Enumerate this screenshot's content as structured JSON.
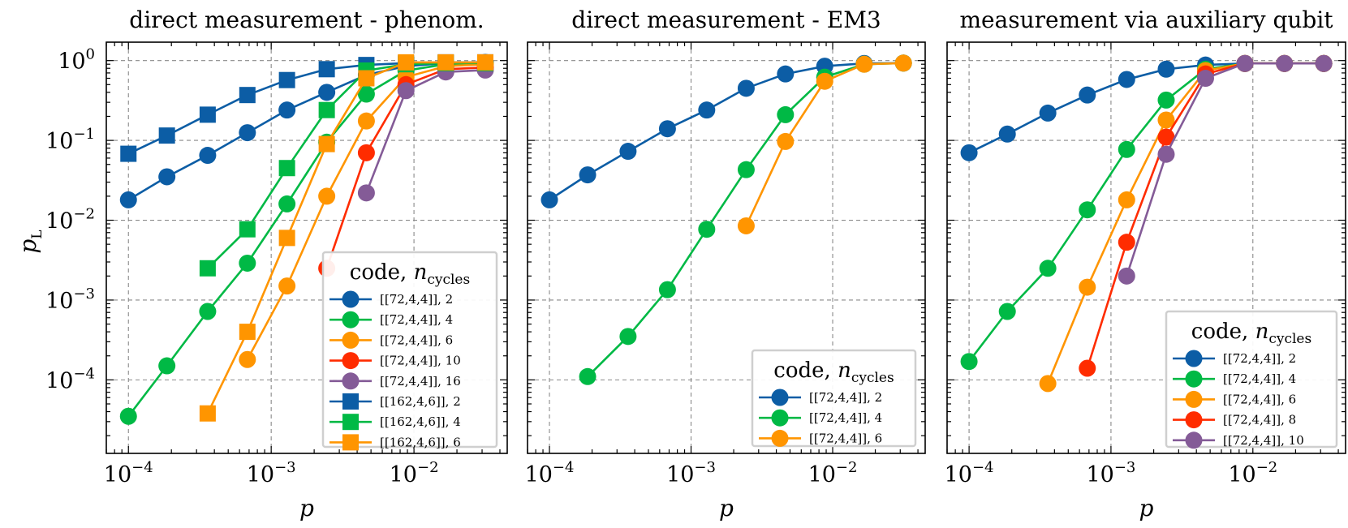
{
  "colors": {
    "blue": "#0C5DA5",
    "green": "#00B945",
    "orange": "#FF9500",
    "red": "#FF2C00",
    "purple": "#845B97"
  },
  "shared_axes": {
    "xlabel": "p",
    "ylabel_base": "p",
    "ylabel_sub": "L",
    "x_tick_exponents": [
      -4,
      -3,
      -2
    ],
    "y_tick_exponents": [
      0,
      -1,
      -2,
      -3,
      -4
    ],
    "tick_base": "10"
  },
  "chart_data": [
    {
      "type": "line",
      "title": "direct measurement - phenom.",
      "xscale": "log",
      "yscale": "log",
      "xlim": [
        7e-05,
        0.045
      ],
      "ylim": [
        1.2e-05,
        1.7
      ],
      "legend": {
        "title_text": "code, ",
        "title_italic": "n",
        "title_sub": "cycles",
        "placement": "lower-right"
      },
      "series": [
        {
          "name": "[[72,4,4]], 2",
          "color": "blue",
          "marker": "circle",
          "x": [
            0.0001,
            0.000186,
            0.000359,
            0.000681,
            0.00129,
            0.00245,
            0.00464,
            0.00879,
            0.0167,
            0.0316
          ],
          "y": [
            0.018,
            0.035,
            0.065,
            0.125,
            0.24,
            0.4,
            0.66,
            0.85,
            0.93,
            0.95
          ]
        },
        {
          "name": "[[72,4,4]], 4",
          "color": "green",
          "marker": "circle",
          "x": [
            0.0001,
            0.000186,
            0.000359,
            0.000681,
            0.00129,
            0.00245,
            0.00464,
            0.00879,
            0.0167,
            0.0316
          ],
          "y": [
            3.5e-05,
            0.00015,
            0.00072,
            0.0029,
            0.016,
            0.095,
            0.38,
            0.75,
            0.9,
            0.93
          ]
        },
        {
          "name": "[[72,4,4]], 6",
          "color": "orange",
          "marker": "circle",
          "x": [
            0.000681,
            0.00129,
            0.00245,
            0.00464,
            0.00879,
            0.0167,
            0.0316
          ],
          "y": [
            0.00018,
            0.0015,
            0.02,
            0.175,
            0.62,
            0.85,
            0.9
          ]
        },
        {
          "name": "[[72,4,4]], 10",
          "color": "red",
          "marker": "circle",
          "x": [
            0.00245,
            0.00464,
            0.00879,
            0.0167,
            0.0316
          ],
          "y": [
            0.0025,
            0.07,
            0.5,
            0.78,
            0.82
          ]
        },
        {
          "name": "[[72,4,4]], 16",
          "color": "purple",
          "marker": "circle",
          "x": [
            0.00464,
            0.00879,
            0.0167,
            0.0316
          ],
          "y": [
            0.022,
            0.42,
            0.72,
            0.76
          ]
        },
        {
          "name": "[[162,4,6]], 2",
          "color": "blue",
          "marker": "square",
          "x": [
            0.0001,
            0.000186,
            0.000359,
            0.000681,
            0.00129,
            0.00245,
            0.00464,
            0.00879,
            0.0167,
            0.0316
          ],
          "y": [
            0.068,
            0.115,
            0.21,
            0.37,
            0.57,
            0.78,
            0.88,
            0.93,
            0.95,
            0.95
          ]
        },
        {
          "name": "[[162,4,6]], 4",
          "color": "green",
          "marker": "square",
          "x": [
            0.000359,
            0.000681,
            0.00129,
            0.00245,
            0.00464,
            0.00879,
            0.0167,
            0.0316
          ],
          "y": [
            0.0025,
            0.0077,
            0.045,
            0.24,
            0.75,
            0.9,
            0.93,
            0.93
          ]
        },
        {
          "name": "[[162,4,6]], 6",
          "color": "orange",
          "marker": "square",
          "x": [
            0.000359,
            0.000681,
            0.00129,
            0.00245,
            0.00464,
            0.00879,
            0.0167,
            0.0316
          ],
          "y": [
            3.8e-05,
            0.0004,
            0.006,
            0.09,
            0.6,
            0.95,
            0.95,
            0.95
          ]
        }
      ]
    },
    {
      "type": "line",
      "title": "direct measurement - EM3",
      "xscale": "log",
      "yscale": "log",
      "xlim": [
        7e-05,
        0.045
      ],
      "ylim": [
        1.2e-05,
        1.7
      ],
      "legend": {
        "title_text": "code, ",
        "title_italic": "n",
        "title_sub": "cycles",
        "placement": "lower-right"
      },
      "series": [
        {
          "name": "[[72,4,4]], 2",
          "color": "blue",
          "marker": "circle",
          "x": [
            0.0001,
            0.000186,
            0.000359,
            0.000681,
            0.00129,
            0.00245,
            0.00464,
            0.00879,
            0.0167,
            0.0316
          ],
          "y": [
            0.018,
            0.037,
            0.073,
            0.14,
            0.24,
            0.45,
            0.68,
            0.85,
            0.92,
            0.93
          ]
        },
        {
          "name": "[[72,4,4]], 4",
          "color": "green",
          "marker": "circle",
          "x": [
            0.000186,
            0.000359,
            0.000681,
            0.00129,
            0.00245,
            0.00464,
            0.00879,
            0.0167,
            0.0316
          ],
          "y": [
            0.00011,
            0.00035,
            0.00135,
            0.0077,
            0.043,
            0.21,
            0.62,
            0.9,
            0.93
          ]
        },
        {
          "name": "[[72,4,4]], 6",
          "color": "orange",
          "marker": "circle",
          "x": [
            0.00245,
            0.00464,
            0.00879,
            0.0167,
            0.0316
          ],
          "y": [
            0.0085,
            0.097,
            0.55,
            0.9,
            0.93
          ]
        }
      ]
    },
    {
      "type": "line",
      "title": "measurement via auxiliary qubit",
      "xscale": "log",
      "yscale": "log",
      "xlim": [
        7e-05,
        0.045
      ],
      "ylim": [
        1.2e-05,
        1.7
      ],
      "legend": {
        "title_text": "code, ",
        "title_italic": "n",
        "title_sub": "cycles",
        "placement": "lower-right"
      },
      "series": [
        {
          "name": "[[72,4,4]], 2",
          "color": "blue",
          "marker": "circle",
          "x": [
            0.0001,
            0.000186,
            0.000359,
            0.000681,
            0.00129,
            0.00245,
            0.00464,
            0.00879,
            0.0167,
            0.0316
          ],
          "y": [
            0.07,
            0.12,
            0.22,
            0.37,
            0.58,
            0.78,
            0.88,
            0.92,
            0.92,
            0.92
          ]
        },
        {
          "name": "[[72,4,4]], 4",
          "color": "green",
          "marker": "circle",
          "x": [
            0.0001,
            0.000186,
            0.000359,
            0.000681,
            0.00129,
            0.00245,
            0.00464,
            0.00879,
            0.0167,
            0.0316
          ],
          "y": [
            0.00017,
            0.00072,
            0.0025,
            0.0135,
            0.077,
            0.32,
            0.78,
            0.92,
            0.92,
            0.92
          ]
        },
        {
          "name": "[[72,4,4]], 6",
          "color": "orange",
          "marker": "circle",
          "x": [
            0.000359,
            0.000681,
            0.00129,
            0.00245,
            0.00464,
            0.00879,
            0.0167,
            0.0316
          ],
          "y": [
            9e-05,
            0.00145,
            0.018,
            0.18,
            0.75,
            0.92,
            0.92,
            0.92
          ]
        },
        {
          "name": "[[72,4,4]], 8",
          "color": "red",
          "marker": "circle",
          "x": [
            0.000681,
            0.00129,
            0.00245,
            0.00464,
            0.00879,
            0.0167,
            0.0316
          ],
          "y": [
            0.00014,
            0.0053,
            0.11,
            0.68,
            0.92,
            0.92,
            0.92
          ]
        },
        {
          "name": "[[72,4,4]], 10",
          "color": "purple",
          "marker": "circle",
          "x": [
            0.00129,
            0.00245,
            0.00464,
            0.00879,
            0.0167,
            0.0316
          ],
          "y": [
            0.002,
            0.067,
            0.6,
            0.92,
            0.92,
            0.92
          ]
        }
      ]
    }
  ]
}
